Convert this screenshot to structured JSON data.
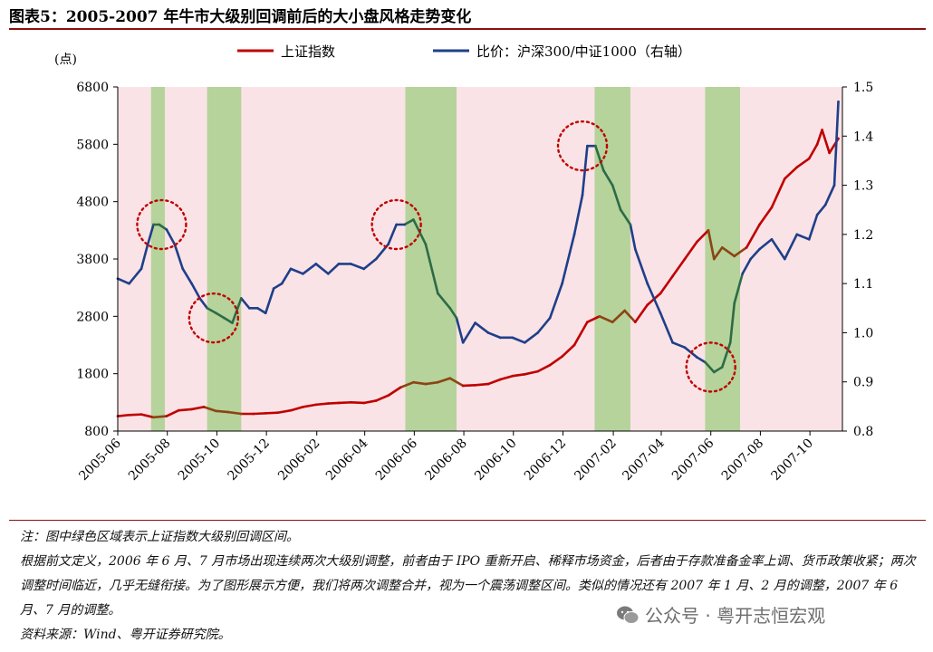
{
  "figure": {
    "title": "图表5：2005-2007 年牛市大级别回调前后的大小盘风格走势变化"
  },
  "watermark": {
    "text": "公众号 · 粤开志恒宏观",
    "icon": "wechat-icon"
  },
  "notes": [
    "注：图中绿色区域表示上证指数大级别回调区间。",
    "根据前文定义，2006 年 6 月、7 月市场出现连续两次大级别调整，前者由于 IPO 重新开启、稀释市场资金，后者由于存款准备金率上调、货币政策收紧；两次调整时间临近，几乎无缝衔接。为了图形展示方便，我们将两次调整合并，视为一个震荡调整区间。类似的情况还有 2007 年 1 月、2 月的调整，2007 年 6 月、7 月的调整。",
    "资料来源：Wind、粤开证券研究院。"
  ],
  "chart_data": {
    "type": "line",
    "left_axis_unit": "(点)",
    "ylim_left": [
      800,
      6800
    ],
    "yticks_left": [
      "800",
      "1800",
      "2800",
      "3800",
      "4800",
      "5800",
      "6800"
    ],
    "ylim_right": [
      0.8,
      1.5
    ],
    "yticks_right": [
      "0.8",
      "0.9",
      "1.0",
      "1.1",
      "1.2",
      "1.3",
      "1.4",
      "1.5"
    ],
    "xlim": [
      "2005-06-01",
      "2007-11-10"
    ],
    "xticks": [
      "2005-06",
      "2005-08",
      "2005-10",
      "2005-12",
      "2006-02",
      "2006-04",
      "2006-06",
      "2006-08",
      "2006-10",
      "2006-12",
      "2007-02",
      "2007-04",
      "2007-06",
      "2007-08",
      "2007-10"
    ],
    "legend_position": "top",
    "background_color": "#fae3e6",
    "shade_color": "#b5d39b",
    "correction_periods": [
      [
        "2005-07-12",
        "2005-07-29"
      ],
      [
        "2005-09-19",
        "2005-10-31"
      ],
      [
        "2006-05-21",
        "2006-07-23"
      ],
      [
        "2007-01-09",
        "2007-02-22"
      ],
      [
        "2007-05-25",
        "2007-07-07"
      ]
    ],
    "highlight_circles": [
      {
        "x": "2005-07-25",
        "axis": "right",
        "y": 1.22
      },
      {
        "x": "2005-09-27",
        "axis": "right",
        "y": 1.03
      },
      {
        "x": "2006-05-10",
        "axis": "right",
        "y": 1.22
      },
      {
        "x": "2006-12-25",
        "axis": "right",
        "y": 1.38
      },
      {
        "x": "2007-06-01",
        "axis": "right",
        "y": 0.93
      }
    ],
    "series": [
      {
        "name": "上证指数",
        "axis": "left",
        "color": "#c00000",
        "shaded_color": "#8b4513",
        "x": [
          "2005-06-01",
          "2005-06-15",
          "2005-06-30",
          "2005-07-15",
          "2005-07-31",
          "2005-08-15",
          "2005-08-31",
          "2005-09-15",
          "2005-09-30",
          "2005-10-15",
          "2005-10-31",
          "2005-11-15",
          "2005-11-30",
          "2005-12-15",
          "2005-12-31",
          "2006-01-15",
          "2006-01-31",
          "2006-02-15",
          "2006-02-28",
          "2006-03-15",
          "2006-03-31",
          "2006-04-15",
          "2006-04-30",
          "2006-05-15",
          "2006-05-31",
          "2006-06-15",
          "2006-06-30",
          "2006-07-15",
          "2006-07-31",
          "2006-08-15",
          "2006-08-31",
          "2006-09-15",
          "2006-09-30",
          "2006-10-15",
          "2006-10-31",
          "2006-11-15",
          "2006-11-30",
          "2006-12-15",
          "2006-12-31",
          "2007-01-15",
          "2007-01-31",
          "2007-02-15",
          "2007-02-28",
          "2007-03-15",
          "2007-03-31",
          "2007-04-15",
          "2007-04-30",
          "2007-05-15",
          "2007-05-29",
          "2007-06-05",
          "2007-06-15",
          "2007-06-30",
          "2007-07-15",
          "2007-07-31",
          "2007-08-15",
          "2007-08-31",
          "2007-09-15",
          "2007-09-30",
          "2007-10-10",
          "2007-10-16",
          "2007-10-25",
          "2007-11-05"
        ],
        "values": [
          1060,
          1080,
          1090,
          1040,
          1060,
          1160,
          1180,
          1220,
          1150,
          1130,
          1100,
          1100,
          1110,
          1120,
          1160,
          1220,
          1260,
          1280,
          1290,
          1300,
          1290,
          1330,
          1420,
          1560,
          1650,
          1620,
          1650,
          1720,
          1590,
          1600,
          1620,
          1700,
          1760,
          1790,
          1840,
          1950,
          2100,
          2300,
          2700,
          2800,
          2700,
          2900,
          2700,
          3000,
          3200,
          3500,
          3800,
          4100,
          4300,
          3800,
          4000,
          3850,
          4000,
          4400,
          4700,
          5200,
          5400,
          5550,
          5800,
          6050,
          5650,
          5900
        ]
      },
      {
        "name": "比价：沪深300/中证1000（右轴）",
        "axis": "right",
        "color": "#1f3f8a",
        "shaded_color": "#2e6b47",
        "x": [
          "2005-06-01",
          "2005-06-15",
          "2005-06-30",
          "2005-07-08",
          "2005-07-15",
          "2005-07-22",
          "2005-07-31",
          "2005-08-10",
          "2005-08-20",
          "2005-08-31",
          "2005-09-10",
          "2005-09-19",
          "2005-09-30",
          "2005-10-10",
          "2005-10-20",
          "2005-10-31",
          "2005-11-10",
          "2005-11-20",
          "2005-11-30",
          "2005-12-10",
          "2005-12-20",
          "2005-12-31",
          "2006-01-15",
          "2006-01-31",
          "2006-02-15",
          "2006-02-28",
          "2006-03-15",
          "2006-03-31",
          "2006-04-15",
          "2006-04-30",
          "2006-05-10",
          "2006-05-20",
          "2006-05-31",
          "2006-06-15",
          "2006-06-30",
          "2006-07-15",
          "2006-07-23",
          "2006-07-31",
          "2006-08-15",
          "2006-08-31",
          "2006-09-15",
          "2006-09-30",
          "2006-10-15",
          "2006-10-31",
          "2006-11-15",
          "2006-11-30",
          "2006-12-15",
          "2006-12-25",
          "2006-12-31",
          "2007-01-10",
          "2007-01-20",
          "2007-01-31",
          "2007-02-10",
          "2007-02-22",
          "2007-02-28",
          "2007-03-15",
          "2007-03-31",
          "2007-04-15",
          "2007-04-30",
          "2007-05-15",
          "2007-05-25",
          "2007-06-05",
          "2007-06-15",
          "2007-06-25",
          "2007-06-30",
          "2007-07-10",
          "2007-07-20",
          "2007-07-31",
          "2007-08-15",
          "2007-08-31",
          "2007-09-15",
          "2007-09-30",
          "2007-10-10",
          "2007-10-20",
          "2007-10-31",
          "2007-11-05"
        ],
        "values": [
          1.11,
          1.1,
          1.13,
          1.18,
          1.22,
          1.22,
          1.21,
          1.18,
          1.13,
          1.1,
          1.07,
          1.05,
          1.04,
          1.03,
          1.02,
          1.07,
          1.05,
          1.05,
          1.04,
          1.09,
          1.1,
          1.13,
          1.12,
          1.14,
          1.12,
          1.14,
          1.14,
          1.13,
          1.15,
          1.18,
          1.22,
          1.22,
          1.23,
          1.18,
          1.08,
          1.05,
          1.03,
          0.98,
          1.02,
          1.0,
          0.99,
          0.99,
          0.98,
          1.0,
          1.03,
          1.1,
          1.2,
          1.28,
          1.38,
          1.38,
          1.33,
          1.3,
          1.25,
          1.22,
          1.17,
          1.1,
          1.04,
          0.98,
          0.97,
          0.95,
          0.94,
          0.92,
          0.93,
          0.98,
          1.06,
          1.12,
          1.15,
          1.17,
          1.19,
          1.15,
          1.2,
          1.19,
          1.24,
          1.26,
          1.3,
          1.47
        ]
      }
    ]
  }
}
